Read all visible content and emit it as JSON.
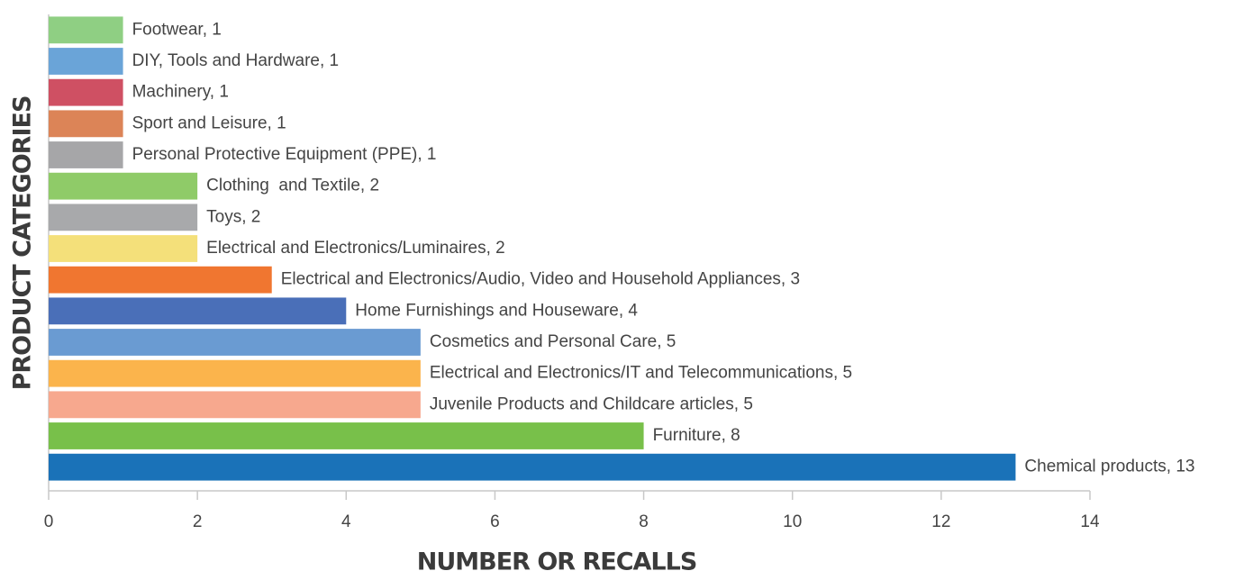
{
  "chart_data": {
    "type": "barh",
    "x_label": "NUMBER OR RECALLS",
    "y_label": "PRODUCT CATEGORIES",
    "categories": [
      "Footwear, 1",
      "DIY, Tools and Hardware, 1",
      "Machinery, 1",
      "Sport and Leisure, 1",
      "Personal Protective Equipment (PPE), 1",
      "Clothing  and Textile, 2",
      "Toys, 2",
      "Electrical and Electronics/Luminaires, 2",
      "Electrical and Electronics/Audio, Video and Household Appliances, 3",
      "Home Furnishings and Houseware, 4",
      "Cosmetics and Personal Care, 5",
      "Electrical and Electronics/IT and Telecommunications, 5",
      "Juvenile Products and Childcare articles, 5",
      "Furniture, 8",
      "Chemical products, 13"
    ],
    "values": [
      1,
      1,
      1,
      1,
      1,
      2,
      2,
      2,
      3,
      4,
      5,
      5,
      5,
      8,
      13
    ],
    "colors": [
      "#8fcf83",
      "#6aa4d8",
      "#cf5063",
      "#dc8457",
      "#a6a6a8",
      "#8fcb68",
      "#a8a9ab",
      "#f4e07a",
      "#f07630",
      "#4a6fb8",
      "#6a9bd2",
      "#fbb44c",
      "#f7a88e",
      "#78c04a",
      "#1a72b8"
    ],
    "xlim": [
      0,
      14
    ],
    "xticks": [
      0,
      2,
      4,
      6,
      8,
      10,
      12,
      14
    ],
    "grid": false
  }
}
